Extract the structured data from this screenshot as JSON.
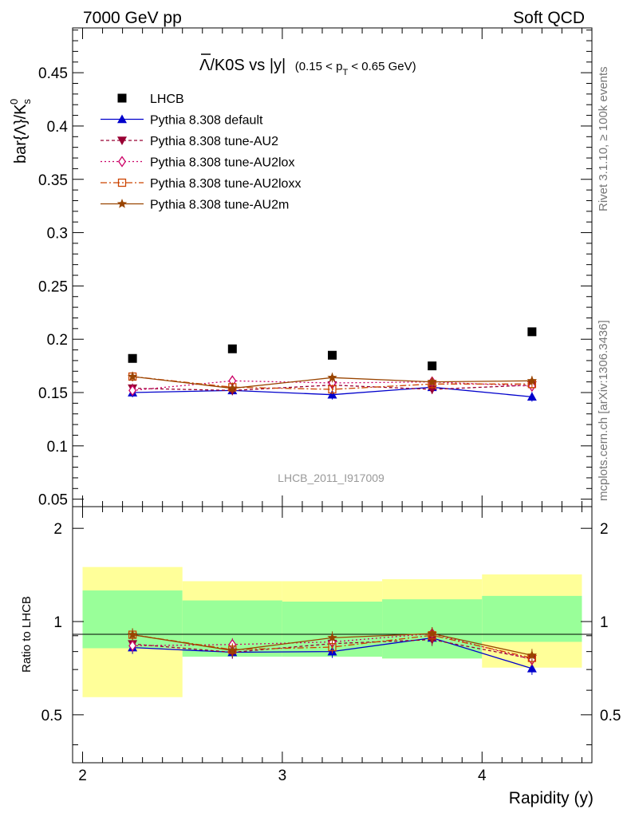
{
  "header": {
    "left": "7000 GeV pp",
    "right": "Soft QCD"
  },
  "side_text": {
    "rivet": "Rivet 3.1.10, ≥ 100k events",
    "source": "mcplots.cern.ch [arXiv:1306.3436]"
  },
  "chart_data": {
    "type": "scatter",
    "title": "Λ̅/K0S vs |y| (0.15 < pT < 0.65 GeV)",
    "title_main": "Λ/K0S vs |y|",
    "title_cut": "(0.15 < p",
    "title_cut_sub": "T",
    "title_cut_end": " < 0.65 GeV)",
    "ylabel": "bar{Λ}/K",
    "ylabel_sub": "s",
    "ylabel_sup": "0",
    "xlabel": "Rapidity (y)",
    "ratio_ylabel": "Ratio to LHCB",
    "watermark": "LHCB_2011_I917009",
    "xlim": [
      1.95,
      4.55
    ],
    "ylim": [
      0.043,
      0.492
    ],
    "ratio_ylim": [
      0.35,
      2.35
    ],
    "ratio_scale": "log",
    "x": [
      2.25,
      2.75,
      3.25,
      3.75,
      4.25
    ],
    "x_bins": [
      [
        2.0,
        2.5
      ],
      [
        2.5,
        3.0
      ],
      [
        3.0,
        3.5
      ],
      [
        3.5,
        4.0
      ],
      [
        4.0,
        4.5
      ]
    ],
    "yticks": [
      "0.05",
      "0.1",
      "0.15",
      "0.2",
      "0.25",
      "0.3",
      "0.35",
      "0.4",
      "0.45"
    ],
    "xticks": [
      "2",
      "3",
      "4"
    ],
    "ratio_yticks": [
      "0.5",
      "1",
      "2"
    ],
    "legend_position": "top-left",
    "data_series": {
      "name": "LHCB",
      "color": "#000000",
      "values": [
        0.182,
        0.191,
        0.185,
        0.175,
        0.207
      ],
      "band_inner": [
        [
          0.82,
          1.26
        ],
        [
          0.77,
          1.17
        ],
        [
          0.77,
          1.16
        ],
        [
          0.76,
          1.18
        ],
        [
          0.86,
          1.21
        ]
      ],
      "band_outer": [
        [
          0.57,
          1.5
        ],
        [
          0.78,
          1.35
        ],
        [
          0.77,
          1.35
        ],
        [
          0.76,
          1.37
        ],
        [
          0.71,
          1.42
        ]
      ]
    },
    "series": [
      {
        "name": "Pythia 8.308 default",
        "color": "#0000cc",
        "dash": "",
        "marker": "triangle-up",
        "values": [
          0.15,
          0.152,
          0.148,
          0.155,
          0.146
        ]
      },
      {
        "name": "Pythia 8.308 tune-AU2",
        "color": "#990033",
        "dash": "4,3",
        "marker": "triangle-down",
        "values": [
          0.154,
          0.152,
          0.157,
          0.153,
          0.157
        ]
      },
      {
        "name": "Pythia 8.308 tune-AU2lox",
        "color": "#cc0066",
        "dash": "2,3",
        "marker": "diamond-open",
        "values": [
          0.152,
          0.161,
          0.159,
          0.16,
          0.156
        ]
      },
      {
        "name": "Pythia 8.308 tune-AU2loxx",
        "color": "#cc4400",
        "dash": "8,3,2,3",
        "marker": "square-open",
        "values": [
          0.165,
          0.155,
          0.153,
          0.158,
          0.158
        ]
      },
      {
        "name": "Pythia 8.308 tune-AU2m",
        "color": "#994400",
        "dash": "",
        "marker": "star",
        "values": [
          0.165,
          0.154,
          0.164,
          0.16,
          0.161
        ]
      }
    ]
  }
}
